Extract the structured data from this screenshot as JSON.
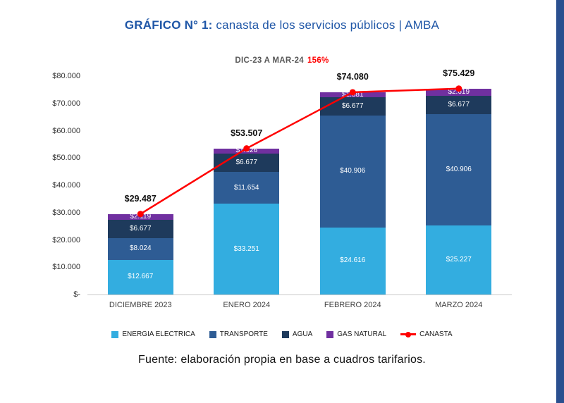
{
  "page": {
    "title_bold": "GRÁFICO N° 1:",
    "title_rest": " canasta de los servicios públicos | AMBA",
    "subtitle_label": "DIC-23 A MAR-24",
    "subtitle_pct": "156%",
    "source": "Fuente: elaboración propia en base a cuadros tarifarios.",
    "colors": {
      "title": "#2057A7",
      "highlight_red": "#FF0000",
      "stripe": "#2A4F8F"
    }
  },
  "chart_data": {
    "type": "bar",
    "stacked": true,
    "title": "DIC-23 A MAR-24 156%",
    "categories": [
      "DICIEMBRE 2023",
      "ENERO 2024",
      "FEBRERO 2024",
      "MARZO 2024"
    ],
    "series": [
      {
        "name": "ENERGIA ELECTRICA",
        "color": "#33ADE0",
        "values": [
          12667,
          33251,
          24616,
          25227
        ],
        "labels": [
          "$12.667",
          "$33.251",
          "$24.616",
          "$25.227"
        ]
      },
      {
        "name": "TRANSPORTE",
        "color": "#2E5C94",
        "values": [
          8024,
          11654,
          40906,
          40906
        ],
        "labels": [
          "$8.024",
          "$11.654",
          "$40.906",
          "$40.906"
        ]
      },
      {
        "name": "AGUA",
        "color": "#1E3A5C",
        "values": [
          6677,
          6677,
          6677,
          6677
        ],
        "labels": [
          "$6.677",
          "$6.677",
          "$6.677",
          "$6.677"
        ]
      },
      {
        "name": "GAS NATURAL",
        "color": "#7030A0",
        "values": [
          2119,
          1926,
          1881,
          2619
        ],
        "labels": [
          "$2.119",
          "$1.926",
          "$1.881",
          "$2.619"
        ]
      }
    ],
    "line_series": {
      "name": "CANASTA",
      "color": "#FF0000",
      "values": [
        29487,
        53507,
        74080,
        75429
      ]
    },
    "totals_labels": [
      "$29.487",
      "$53.507",
      "$74.080",
      "$75.429"
    ],
    "y_ticks": [
      "$-",
      "$10.000",
      "$20.000",
      "$30.000",
      "$40.000",
      "$50.000",
      "$60.000",
      "$70.000",
      "$80.000"
    ],
    "ylim": [
      0,
      80000
    ],
    "grid": false,
    "legend_position": "bottom"
  }
}
